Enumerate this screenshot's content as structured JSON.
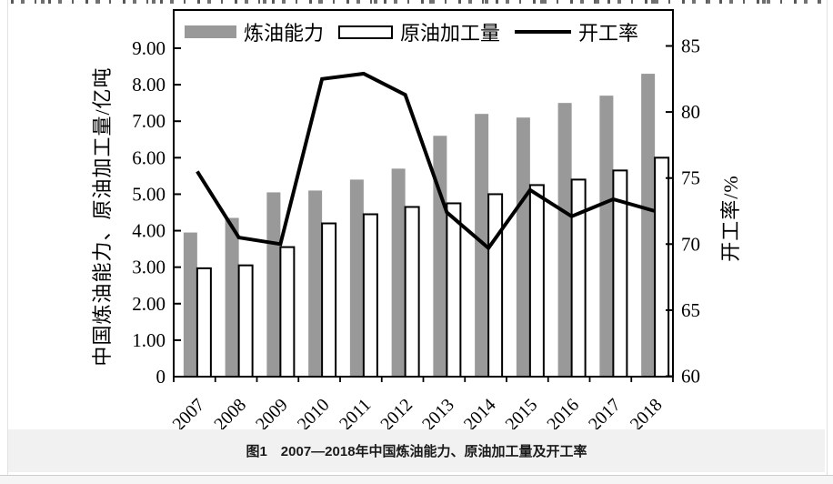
{
  "figure": {
    "caption": "图1　2007—2018年中国炼油能力、原油加工量及开工率"
  },
  "chart_data": {
    "type": "bar+line combo",
    "categories": [
      "2007",
      "2008",
      "2009",
      "2010",
      "2011",
      "2012",
      "2013",
      "2014",
      "2015",
      "2016",
      "2017",
      "2018"
    ],
    "series": [
      {
        "name": "炼油能力",
        "type": "bar",
        "axis": "left",
        "color": "#999999",
        "values": [
          3.95,
          4.35,
          5.05,
          5.1,
          5.4,
          5.7,
          6.6,
          7.2,
          7.1,
          7.5,
          7.7,
          8.3
        ]
      },
      {
        "name": "原油加工量",
        "type": "bar",
        "axis": "left",
        "color": "#ffffff",
        "stroke": "#000000",
        "values": [
          2.97,
          3.05,
          3.55,
          4.2,
          4.45,
          4.65,
          4.75,
          5.0,
          5.25,
          5.4,
          5.65,
          6.0
        ]
      },
      {
        "name": "开工率",
        "type": "line",
        "axis": "right",
        "color": "#000000",
        "values": [
          75.5,
          70.5,
          70.0,
          82.5,
          82.9,
          81.3,
          72.4,
          69.7,
          74.1,
          72.1,
          73.4,
          72.5
        ]
      }
    ],
    "left_axis": {
      "label": "中国炼油能力、原油加工量/亿吨",
      "min": 0,
      "max": 9,
      "tick_labels": [
        "0",
        "1.00",
        "2.00",
        "3.00",
        "4.00",
        "5.00",
        "6.00",
        "7.00",
        "8.00",
        "9.00"
      ]
    },
    "right_axis": {
      "label": "开工率/%",
      "min": 60,
      "max": 85,
      "tick_labels": [
        "60",
        "65",
        "70",
        "75",
        "80",
        "85"
      ]
    },
    "legend_position": "top-inside",
    "grid": false
  }
}
